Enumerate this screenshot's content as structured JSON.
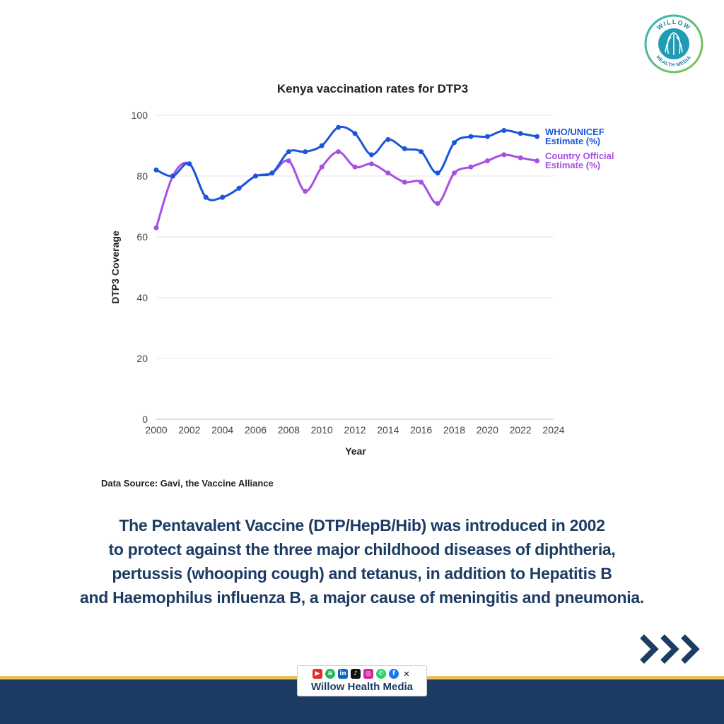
{
  "chart_data": {
    "type": "line",
    "title": "Kenya vaccination rates for DTP3",
    "xlabel": "Year",
    "ylabel": "DTP3 Coverage",
    "xlim": [
      2000,
      2024
    ],
    "ylim": [
      0,
      100
    ],
    "x_ticks": [
      2000,
      2002,
      2004,
      2006,
      2008,
      2010,
      2012,
      2014,
      2016,
      2018,
      2020,
      2022,
      2024
    ],
    "y_ticks": [
      0,
      20,
      40,
      60,
      80,
      100
    ],
    "grid": "horizontal",
    "legend_placement": "right, at line ends",
    "x": [
      2000,
      2001,
      2002,
      2003,
      2004,
      2005,
      2006,
      2007,
      2008,
      2009,
      2010,
      2011,
      2012,
      2013,
      2014,
      2015,
      2016,
      2017,
      2018,
      2019,
      2020,
      2021,
      2022,
      2023
    ],
    "series": [
      {
        "name_line1": "Country Official",
        "name_line2": "Estimate (%)",
        "color": "#a64fe0",
        "values": [
          63,
          80,
          84,
          73,
          73,
          76,
          80,
          81,
          85,
          75,
          83,
          88,
          83,
          84,
          81,
          78,
          78,
          71,
          81,
          83,
          85,
          87,
          86,
          85
        ]
      },
      {
        "name_line1": "WHO/UNICEF",
        "name_line2": "Estimate (%)",
        "color": "#1a56db",
        "values": [
          82,
          80,
          84,
          73,
          73,
          76,
          80,
          81,
          88,
          88,
          90,
          96,
          94,
          87,
          92,
          89,
          88,
          81,
          91,
          93,
          93,
          95,
          94,
          93
        ]
      }
    ]
  },
  "source": "Data Source: Gavi, the Vaccine Alliance",
  "caption_lines": [
    "The Pentavalent Vaccine (DTP/HepB/Hib) was introduced in 2002",
    "to protect against the three major childhood diseases of diphtheria,",
    "pertussis (whooping cough) and tetanus, in addition to Hepatitis B",
    "and Haemophilus influenza B, a major cause of meningitis and pneumonia."
  ],
  "brand": {
    "name": "Willow Health Media",
    "logo_top_text": "WILLOW",
    "logo_bottom_text": "HEALTH MEDIA",
    "social_icons": [
      "youtube-icon",
      "spotify-icon",
      "linkedin-icon",
      "tiktok-icon",
      "instagram-icon",
      "whatsapp-icon",
      "facebook-icon",
      "x-icon"
    ]
  },
  "colors": {
    "caption_text": "#1d3c64",
    "footer_band": "#1d3c64",
    "footer_line": "#e9c25a",
    "grid": "#e6e6e6"
  }
}
